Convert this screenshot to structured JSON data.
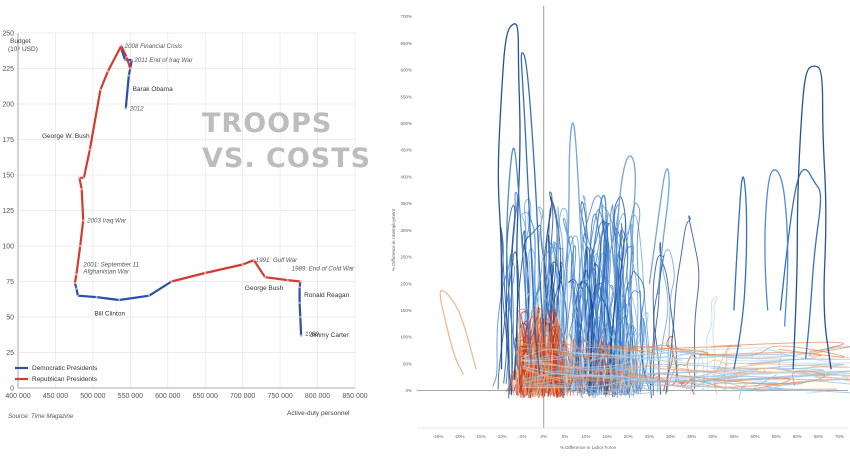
{
  "chart_data": [
    {
      "type": "line",
      "title": "TROOPS VS. COSTS",
      "title_lines": [
        "TROOPS",
        "VS. COSTS"
      ],
      "ylabel_lines": [
        "Budget",
        "(10⁹ USD)"
      ],
      "xlabel": "Active-duty personnel",
      "source": "Source: Time Magazine",
      "xlim": [
        400000,
        850000
      ],
      "ylim": [
        0,
        250
      ],
      "x_tick_labels": [
        "400 000",
        "450 000",
        "500 000",
        "550 000",
        "600 000",
        "650 000",
        "700 000",
        "750 000",
        "800 000",
        "850 000"
      ],
      "y_tick_labels": [
        "0",
        "25",
        "50",
        "75",
        "100",
        "125",
        "150",
        "175",
        "200",
        "225",
        "250"
      ],
      "grid": true,
      "legend_position": "bottom-left",
      "series": [
        {
          "name": "Democratic Presidents",
          "color": "#2a4fa6",
          "segments": [
            [
              [
                778000,
                37
              ],
              [
                777000,
                50
              ],
              [
                776000,
                60
              ],
              [
                776000,
                71
              ],
              [
                777000,
                75
              ]
            ],
            [
              [
                605000,
                75
              ],
              [
                575000,
                65
              ],
              [
                535000,
                62
              ],
              [
                505000,
                64
              ],
              [
                480000,
                65
              ],
              [
                478000,
                70
              ],
              [
                476000,
                74
              ]
            ],
            [
              [
                538000,
                239
              ],
              [
                543000,
                231
              ],
              [
                552000,
                231
              ],
              [
                548000,
                220
              ],
              [
                544000,
                197
              ]
            ]
          ]
        },
        {
          "name": "Republican Presidents",
          "color": "#d43a30",
          "segments": [
            [
              [
                777000,
                75
              ],
              [
                760000,
                76
              ],
              [
                730000,
                78
              ],
              [
                715000,
                90
              ],
              [
                700000,
                87
              ],
              [
                650000,
                81
              ],
              [
                605000,
                75
              ]
            ],
            [
              [
                476000,
                74
              ],
              [
                478000,
                80
              ],
              [
                483000,
                100
              ],
              [
                487000,
                118
              ],
              [
                485000,
                140
              ],
              [
                482000,
                148
              ],
              [
                488000,
                148
              ],
              [
                496000,
                168
              ],
              [
                510000,
                210
              ],
              [
                520000,
                223
              ],
              [
                538000,
                241
              ],
              [
                545000,
                233
              ],
              [
                550000,
                225
              ]
            ]
          ]
        }
      ],
      "annotations": [
        {
          "text": "2008 Financial Crisis",
          "x": 537000,
          "y": 241
        },
        {
          "text": "2011 End of Iraq War",
          "x": 550000,
          "y": 231
        },
        {
          "text": "2012",
          "x": 544000,
          "y": 197
        },
        {
          "text": "2003 Iraq War",
          "x": 487000,
          "y": 118
        },
        {
          "text": "2001: September 11",
          "x": 482000,
          "y": 87
        },
        {
          "text": "Afghanistan War",
          "x": 482000,
          "y": 82
        },
        {
          "text": "1991: Gulf War",
          "x": 712000,
          "y": 90
        },
        {
          "text": "1989: End of Cold War",
          "x": 760000,
          "y": 84
        },
        {
          "text": "1980",
          "x": 778000,
          "y": 38
        }
      ],
      "president_labels": [
        {
          "text": "Barak Obama",
          "x": 553000,
          "y": 209
        },
        {
          "text": "George W. Bush",
          "x": 432000,
          "y": 176
        },
        {
          "text": "George Bush",
          "x": 703000,
          "y": 69
        },
        {
          "text": "Ronald Reagan",
          "x": 782000,
          "y": 64
        },
        {
          "text": "Bill Clinton",
          "x": 502000,
          "y": 51
        },
        {
          "text": "Jimmy Carter",
          "x": 790000,
          "y": 36
        }
      ]
    },
    {
      "type": "line",
      "xlabel": "% Difference in Labor Force",
      "ylabel": "% Difference in Unemployment",
      "xlim": [
        -30,
        72
      ],
      "ylim": [
        -40,
        720
      ],
      "x_tick_labels": [
        "-25%",
        "-20%",
        "-15%",
        "-10%",
        "-5%",
        "0%",
        "5%",
        "10%",
        "15%",
        "20%",
        "25%",
        "30%",
        "35%",
        "40%",
        "45%",
        "50%",
        "55%",
        "60%",
        "65%",
        "70%"
      ],
      "y_tick_labels": [
        "0%",
        "50%",
        "100%",
        "150%",
        "200%",
        "250%",
        "300%",
        "350%",
        "400%",
        "450%",
        "500%",
        "550%",
        "600%",
        "650%",
        "700%"
      ],
      "grid": false,
      "palette": [
        "#0d3f8c",
        "#1f5fb4",
        "#3b7fcc",
        "#5f9dd8",
        "#8cbde6",
        "#b9d8ee",
        "#e9b48a",
        "#e8864a",
        "#d9552a",
        "#c2321b"
      ],
      "series": [
        {
          "values": [
            [
              -7,
              20
            ],
            [
              -6,
              150
            ],
            [
              -6.5,
              260
            ],
            [
              -6,
              360
            ],
            [
              -5.5,
              480
            ],
            [
              -6,
              600
            ],
            [
              -6,
              680
            ],
            [
              -7,
              690
            ],
            [
              -9,
              670
            ],
            [
              -10,
              560
            ],
            [
              -11,
              400
            ],
            [
              -10,
              280
            ],
            [
              -10,
              150
            ],
            [
              -10,
              40
            ]
          ]
        },
        {
          "values": [
            [
              -1,
              30
            ],
            [
              -2,
              100
            ],
            [
              -3,
              260
            ],
            [
              -4,
              430
            ],
            [
              -5,
              580
            ],
            [
              -5.5,
              640
            ],
            [
              -4,
              620
            ],
            [
              -2,
              400
            ],
            [
              -1,
              220
            ],
            [
              0,
              100
            ]
          ]
        },
        {
          "values": [
            [
              -3,
              50
            ],
            [
              -4,
              140
            ],
            [
              -5,
              260
            ],
            [
              -6,
              380
            ],
            [
              -7,
              470
            ],
            [
              -8,
              420
            ],
            [
              -9,
              280
            ],
            [
              -8,
              140
            ],
            [
              -6,
              40
            ]
          ]
        },
        {
          "values": [
            [
              3,
              30
            ],
            [
              5,
              160
            ],
            [
              6,
              310
            ],
            [
              6,
              460
            ],
            [
              7,
              520
            ],
            [
              8,
              420
            ],
            [
              9,
              250
            ],
            [
              10,
              90
            ]
          ]
        },
        {
          "values": [
            [
              59,
              40
            ],
            [
              60,
              200
            ],
            [
              60,
              360
            ],
            [
              61,
              520
            ],
            [
              62,
              600
            ],
            [
              64,
              610
            ],
            [
              66,
              600
            ],
            [
              66,
              480
            ],
            [
              67,
              330
            ],
            [
              66,
              150
            ],
            [
              68,
              40
            ]
          ]
        },
        {
          "values": [
            [
              56,
              150
            ],
            [
              58,
              300
            ],
            [
              60,
              400
            ],
            [
              62,
              420
            ],
            [
              64,
              390
            ],
            [
              66,
              370
            ],
            [
              64,
              260
            ],
            [
              63,
              140
            ],
            [
              62,
              60
            ]
          ]
        },
        {
          "values": [
            [
              53,
              150
            ],
            [
              52,
              250
            ],
            [
              53,
              400
            ],
            [
              55,
              420
            ],
            [
              57,
              380
            ],
            [
              58,
              250
            ],
            [
              57,
              120
            ]
          ]
        },
        {
          "values": [
            [
              20,
              160
            ],
            [
              21,
              300
            ],
            [
              22,
              420
            ],
            [
              20,
              450
            ],
            [
              18,
              380
            ],
            [
              17,
              240
            ],
            [
              18,
              150
            ]
          ]
        },
        {
          "values": [
            [
              -16,
              40
            ],
            [
              -18,
              100
            ],
            [
              -20,
              150
            ],
            [
              -23,
              185
            ],
            [
              -25,
              190
            ],
            [
              -23,
              120
            ],
            [
              -21,
              60
            ],
            [
              -19,
              30
            ]
          ]
        },
        {
          "values": [
            [
              45,
              40
            ],
            [
              47,
              120
            ],
            [
              48,
              240
            ],
            [
              48,
              360
            ],
            [
              47,
              420
            ],
            [
              46,
              300
            ],
            [
              45,
              150
            ]
          ]
        },
        {
          "values": [
            [
              10,
              150
            ],
            [
              12,
              280
            ],
            [
              14,
              380
            ],
            [
              15,
              340
            ],
            [
              14,
              200
            ],
            [
              12,
              120
            ]
          ]
        },
        {
          "values": [
            [
              25,
              200
            ],
            [
              27,
              320
            ],
            [
              29,
              430
            ],
            [
              30,
              390
            ],
            [
              28,
              270
            ],
            [
              27,
              180
            ]
          ]
        }
      ]
    }
  ]
}
